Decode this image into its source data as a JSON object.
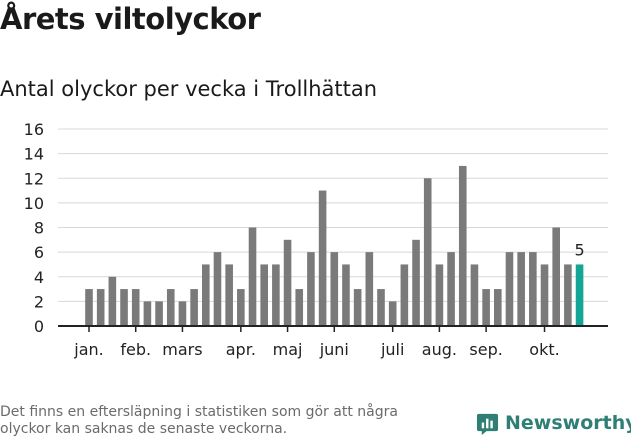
{
  "title": "Årets viltolyckor",
  "subtitle": "Antal olyckor per vecka i Trollhättan",
  "footnote": "Det finns en eftersläpning i statistiken som gör att några olyckor kan saknas de senaste veckorna.",
  "brand": {
    "name": "Newsworthy"
  },
  "colors": {
    "bar": "#7a7a7a",
    "highlight": "#13a595",
    "grid": "#d8d8d8",
    "axis": "#222222",
    "brand": "#2f7f74"
  },
  "chart_data": {
    "type": "bar",
    "title": "Antal olyckor per vecka i Trollhättan",
    "xlabel": "",
    "ylabel": "",
    "ylim": [
      0,
      16
    ],
    "yticks": [
      0,
      2,
      4,
      6,
      8,
      10,
      12,
      14,
      16
    ],
    "weeks": [
      1,
      2,
      3,
      4,
      5,
      6,
      7,
      8,
      9,
      10,
      11,
      12,
      13,
      14,
      15,
      16,
      17,
      18,
      19,
      20,
      21,
      22,
      23,
      24,
      25,
      26,
      27,
      28,
      29,
      30,
      31,
      32,
      33,
      34,
      35,
      36,
      37,
      38,
      39,
      40,
      41,
      42,
      43
    ],
    "values": [
      3,
      3,
      4,
      3,
      3,
      2,
      2,
      3,
      2,
      3,
      5,
      6,
      5,
      3,
      8,
      5,
      5,
      7,
      3,
      6,
      11,
      6,
      5,
      3,
      6,
      3,
      2,
      5,
      7,
      12,
      5,
      6,
      13,
      5,
      3,
      3,
      6,
      6,
      6,
      5,
      8,
      5,
      5
    ],
    "highlight_index": 42,
    "highlight_label": "5",
    "month_labels": [
      {
        "label": "jan.",
        "week": 1
      },
      {
        "label": "feb.",
        "week": 5
      },
      {
        "label": "mars",
        "week": 9
      },
      {
        "label": "apr.",
        "week": 14
      },
      {
        "label": "maj",
        "week": 18
      },
      {
        "label": "juni",
        "week": 22
      },
      {
        "label": "juli",
        "week": 27
      },
      {
        "label": "aug.",
        "week": 31
      },
      {
        "label": "sep.",
        "week": 35
      },
      {
        "label": "okt.",
        "week": 40
      }
    ]
  }
}
